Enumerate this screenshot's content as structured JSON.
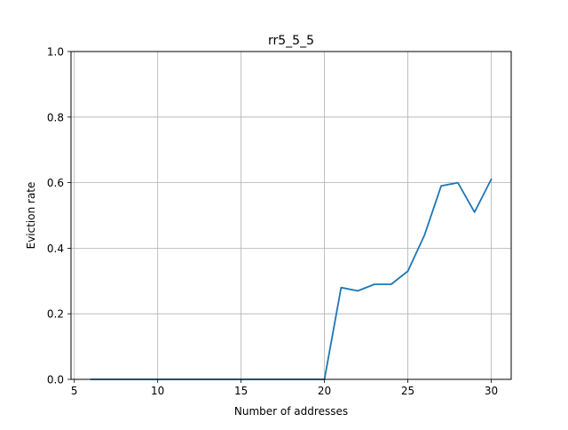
{
  "chart_data": {
    "type": "line",
    "title": "rr5_5_5",
    "xlabel": "Number of addresses",
    "ylabel": "Eviction rate",
    "xlim": [
      4.8,
      31.2
    ],
    "ylim": [
      0,
      1.0
    ],
    "x_ticks": [
      5,
      10,
      15,
      20,
      25,
      30
    ],
    "y_ticks": [
      0.0,
      0.2,
      0.4,
      0.6,
      0.8,
      1.0
    ],
    "x_tick_labels": [
      "5",
      "10",
      "15",
      "20",
      "25",
      "30"
    ],
    "y_tick_labels": [
      "0.0",
      "0.2",
      "0.4",
      "0.6",
      "0.8",
      "1.0"
    ],
    "grid": true,
    "series": [
      {
        "color": "#1f77b4",
        "x": [
          6,
          7,
          8,
          9,
          10,
          11,
          12,
          13,
          14,
          15,
          16,
          17,
          18,
          19,
          20,
          21,
          22,
          23,
          24,
          25,
          26,
          27,
          28,
          29,
          30
        ],
        "y": [
          0,
          0,
          0,
          0,
          0,
          0,
          0,
          0,
          0,
          0,
          0,
          0,
          0,
          0,
          0,
          0.28,
          0.27,
          0.29,
          0.29,
          0.33,
          0.44,
          0.59,
          0.6,
          0.51,
          0.61
        ]
      }
    ]
  }
}
